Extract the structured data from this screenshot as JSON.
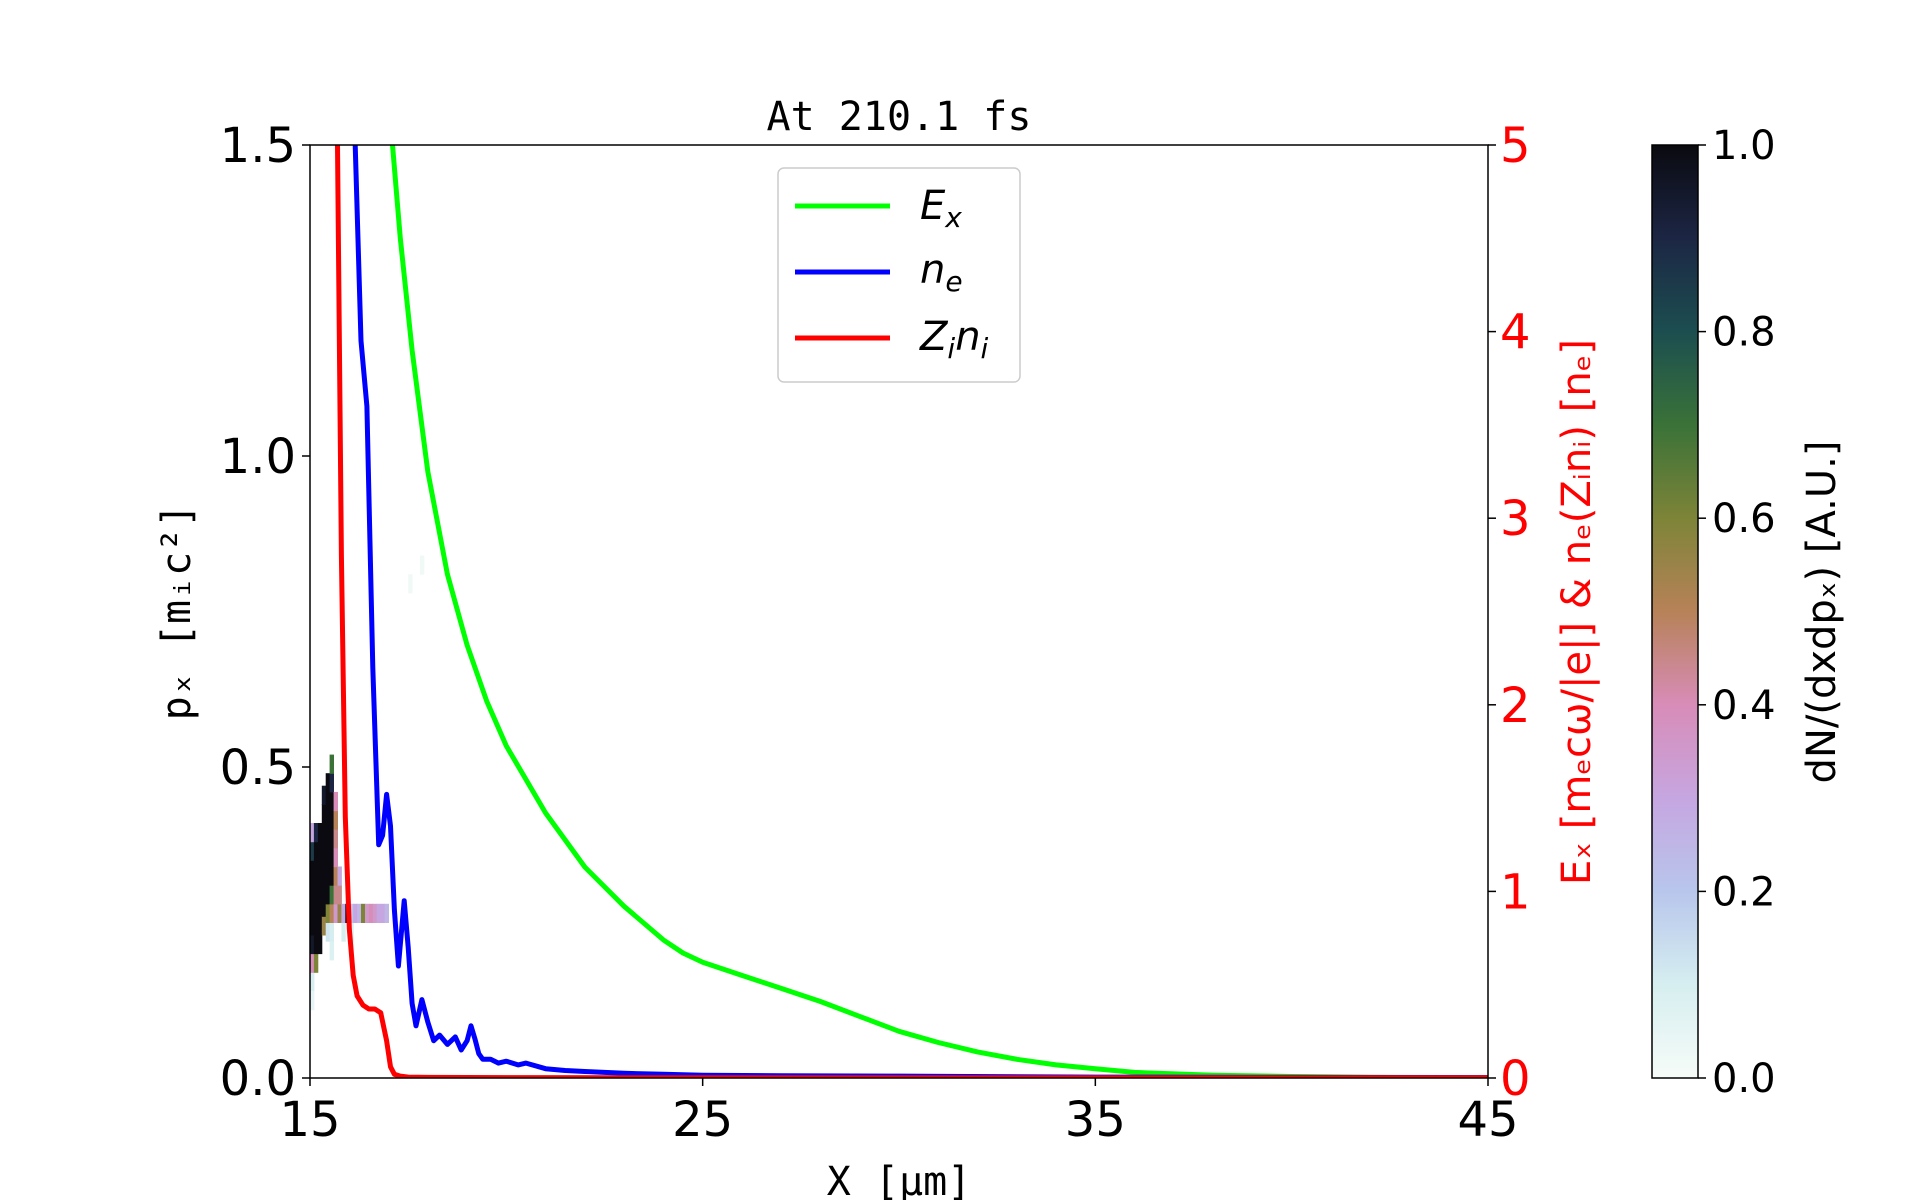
{
  "chart_data": {
    "type": "line",
    "title": "At 210.1 fs",
    "xlabel": "X [μm]",
    "ylabel": "pₓ [mᵢc²]",
    "y2label": "Eₓ [mₑcω/|e|] & nₑ(Zᵢnᵢ) [nₑ]",
    "colorbar_label": "dN/(dxdpₓ) [A.U.]",
    "xlim": [
      15,
      45
    ],
    "ylim": [
      0,
      1.5
    ],
    "y2lim": [
      0,
      5
    ],
    "clim": [
      0,
      1
    ],
    "x_ticks": [
      "15",
      "25",
      "35",
      "45"
    ],
    "y_ticks": [
      "0.0",
      "0.5",
      "1.0",
      "1.5"
    ],
    "y2_ticks": [
      "0",
      "1",
      "2",
      "3",
      "4",
      "5"
    ],
    "colorbar_ticks": [
      "0.0",
      "0.2",
      "0.4",
      "0.6",
      "0.8",
      "1.0"
    ],
    "legend_position": "top-center",
    "grid": false,
    "series": [
      {
        "name": "Ex",
        "color": "#00ff00",
        "axis": "right",
        "x": [
          17.1,
          17.3,
          17.6,
          18.0,
          18.5,
          19.0,
          19.5,
          20.0,
          21.0,
          22.0,
          23.0,
          24.0,
          24.5,
          25.0,
          26.0,
          27.0,
          28.0,
          29.0,
          30.0,
          31.0,
          32.0,
          33.0,
          34.0,
          35.0,
          36.0,
          38.0,
          40.0,
          42.0,
          45.0
        ],
        "y": [
          5.0,
          4.5,
          3.9,
          3.25,
          2.7,
          2.32,
          2.02,
          1.78,
          1.42,
          1.13,
          0.92,
          0.74,
          0.67,
          0.62,
          0.55,
          0.48,
          0.41,
          0.33,
          0.25,
          0.19,
          0.14,
          0.1,
          0.07,
          0.05,
          0.03,
          0.015,
          0.008,
          0.004,
          0.002
        ]
      },
      {
        "name": "ne",
        "color": "#0000ff",
        "axis": "right",
        "x": [
          16.15,
          16.3,
          16.45,
          16.6,
          16.75,
          16.85,
          16.95,
          17.05,
          17.15,
          17.25,
          17.4,
          17.5,
          17.6,
          17.7,
          17.85,
          18.0,
          18.15,
          18.3,
          18.5,
          18.7,
          18.85,
          19.0,
          19.1,
          19.2,
          19.3,
          19.4,
          19.6,
          19.8,
          20.0,
          20.3,
          20.5,
          21.0,
          21.5,
          22.0,
          22.5,
          23.0,
          24.0,
          25.0,
          27.0,
          30.0,
          35.0,
          40.0,
          45.0
        ],
        "y": [
          5.0,
          3.95,
          3.6,
          2.2,
          1.25,
          1.3,
          1.52,
          1.35,
          0.9,
          0.6,
          0.95,
          0.7,
          0.4,
          0.28,
          0.42,
          0.3,
          0.2,
          0.23,
          0.18,
          0.22,
          0.15,
          0.2,
          0.28,
          0.21,
          0.13,
          0.1,
          0.1,
          0.08,
          0.09,
          0.07,
          0.08,
          0.05,
          0.04,
          0.035,
          0.03,
          0.025,
          0.02,
          0.015,
          0.012,
          0.01,
          0.005,
          0.003,
          0.002
        ]
      },
      {
        "name": "Zini",
        "color": "#ff0000",
        "axis": "right",
        "x": [
          15.7,
          15.8,
          15.9,
          16.0,
          16.1,
          16.2,
          16.35,
          16.5,
          16.65,
          16.8,
          16.95,
          17.05,
          17.15,
          17.3,
          17.5,
          18.0,
          20.0,
          25.0,
          30.0,
          35.0,
          40.0,
          45.0
        ],
        "y": [
          5.0,
          2.8,
          1.4,
          0.8,
          0.55,
          0.44,
          0.39,
          0.37,
          0.37,
          0.35,
          0.2,
          0.06,
          0.02,
          0.01,
          0.005,
          0.003,
          0.002,
          0.001,
          0.001,
          0.001,
          0.001,
          0.001
        ]
      }
    ],
    "heatmap_cells": [
      {
        "x": 15.0,
        "y": 0.14,
        "v": 0.1
      },
      {
        "x": 15.0,
        "y": 0.17,
        "v": 0.4
      },
      {
        "x": 15.0,
        "y": 0.2,
        "v": 0.95
      },
      {
        "x": 15.0,
        "y": 0.23,
        "v": 1.0
      },
      {
        "x": 15.0,
        "y": 0.26,
        "v": 1.0
      },
      {
        "x": 15.0,
        "y": 0.29,
        "v": 1.0
      },
      {
        "x": 15.0,
        "y": 0.32,
        "v": 1.0
      },
      {
        "x": 15.0,
        "y": 0.35,
        "v": 0.85
      },
      {
        "x": 15.0,
        "y": 0.38,
        "v": 0.3
      },
      {
        "x": 15.1,
        "y": 0.17,
        "v": 0.6
      },
      {
        "x": 15.1,
        "y": 0.2,
        "v": 1.0
      },
      {
        "x": 15.1,
        "y": 0.23,
        "v": 1.0
      },
      {
        "x": 15.1,
        "y": 0.26,
        "v": 1.0
      },
      {
        "x": 15.1,
        "y": 0.29,
        "v": 1.0
      },
      {
        "x": 15.1,
        "y": 0.32,
        "v": 1.0
      },
      {
        "x": 15.1,
        "y": 0.35,
        "v": 1.0
      },
      {
        "x": 15.1,
        "y": 0.38,
        "v": 0.9
      },
      {
        "x": 15.2,
        "y": 0.2,
        "v": 1.0
      },
      {
        "x": 15.2,
        "y": 0.23,
        "v": 1.0
      },
      {
        "x": 15.2,
        "y": 0.26,
        "v": 1.0
      },
      {
        "x": 15.2,
        "y": 0.29,
        "v": 1.0
      },
      {
        "x": 15.2,
        "y": 0.32,
        "v": 1.0
      },
      {
        "x": 15.2,
        "y": 0.35,
        "v": 1.0
      },
      {
        "x": 15.2,
        "y": 0.38,
        "v": 1.0
      },
      {
        "x": 15.3,
        "y": 0.23,
        "v": 0.55
      },
      {
        "x": 15.3,
        "y": 0.26,
        "v": 1.0
      },
      {
        "x": 15.3,
        "y": 0.29,
        "v": 1.0
      },
      {
        "x": 15.3,
        "y": 0.32,
        "v": 1.0
      },
      {
        "x": 15.3,
        "y": 0.35,
        "v": 1.0
      },
      {
        "x": 15.3,
        "y": 0.38,
        "v": 1.0
      },
      {
        "x": 15.3,
        "y": 0.41,
        "v": 1.0
      },
      {
        "x": 15.3,
        "y": 0.44,
        "v": 0.95
      },
      {
        "x": 15.4,
        "y": 0.22,
        "v": 0.12
      },
      {
        "x": 15.4,
        "y": 0.25,
        "v": 0.6
      },
      {
        "x": 15.4,
        "y": 0.28,
        "v": 1.0
      },
      {
        "x": 15.4,
        "y": 0.31,
        "v": 1.0
      },
      {
        "x": 15.4,
        "y": 0.34,
        "v": 1.0
      },
      {
        "x": 15.4,
        "y": 0.37,
        "v": 1.0
      },
      {
        "x": 15.4,
        "y": 0.4,
        "v": 1.0
      },
      {
        "x": 15.4,
        "y": 0.43,
        "v": 1.0
      },
      {
        "x": 15.4,
        "y": 0.46,
        "v": 1.0
      },
      {
        "x": 15.5,
        "y": 0.22,
        "v": 0.1
      },
      {
        "x": 15.5,
        "y": 0.25,
        "v": 0.5
      },
      {
        "x": 15.5,
        "y": 0.28,
        "v": 0.7
      },
      {
        "x": 15.5,
        "y": 0.31,
        "v": 1.0
      },
      {
        "x": 15.5,
        "y": 0.34,
        "v": 1.0
      },
      {
        "x": 15.5,
        "y": 0.37,
        "v": 1.0
      },
      {
        "x": 15.5,
        "y": 0.4,
        "v": 1.0
      },
      {
        "x": 15.5,
        "y": 0.43,
        "v": 1.0
      },
      {
        "x": 15.5,
        "y": 0.46,
        "v": 0.9
      },
      {
        "x": 15.5,
        "y": 0.49,
        "v": 0.7
      },
      {
        "x": 15.6,
        "y": 0.25,
        "v": 0.35
      },
      {
        "x": 15.6,
        "y": 0.28,
        "v": 0.45
      },
      {
        "x": 15.6,
        "y": 0.31,
        "v": 0.5
      },
      {
        "x": 15.6,
        "y": 0.34,
        "v": 0.4
      },
      {
        "x": 15.6,
        "y": 0.37,
        "v": 0.45
      },
      {
        "x": 15.6,
        "y": 0.4,
        "v": 0.5
      },
      {
        "x": 15.6,
        "y": 0.43,
        "v": 0.4
      },
      {
        "x": 15.7,
        "y": 0.25,
        "v": 0.55
      },
      {
        "x": 15.7,
        "y": 0.28,
        "v": 0.45
      },
      {
        "x": 15.7,
        "y": 0.31,
        "v": 0.3
      },
      {
        "x": 15.8,
        "y": 0.22,
        "v": 0.1
      },
      {
        "x": 15.8,
        "y": 0.25,
        "v": 0.3
      },
      {
        "x": 15.9,
        "y": 0.25,
        "v": 1.0
      },
      {
        "x": 16.0,
        "y": 0.22,
        "v": 0.1
      },
      {
        "x": 16.0,
        "y": 0.25,
        "v": 0.2
      },
      {
        "x": 16.1,
        "y": 0.25,
        "v": 0.3
      },
      {
        "x": 16.2,
        "y": 0.25,
        "v": 0.25
      },
      {
        "x": 16.3,
        "y": 0.25,
        "v": 0.6
      },
      {
        "x": 16.4,
        "y": 0.25,
        "v": 0.35
      },
      {
        "x": 16.5,
        "y": 0.25,
        "v": 0.4
      },
      {
        "x": 16.6,
        "y": 0.25,
        "v": 0.35
      },
      {
        "x": 16.7,
        "y": 0.25,
        "v": 0.3
      },
      {
        "x": 16.8,
        "y": 0.25,
        "v": 0.3
      },
      {
        "x": 16.9,
        "y": 0.25,
        "v": 0.25
      },
      {
        "x": 15.0,
        "y": 0.11,
        "v": 0.05
      },
      {
        "x": 15.5,
        "y": 0.19,
        "v": 0.08
      },
      {
        "x": 16.0,
        "y": 0.19,
        "v": 0.06
      },
      {
        "x": 17.5,
        "y": 0.78,
        "v": 0.02
      },
      {
        "x": 17.8,
        "y": 0.81,
        "v": 0.02
      }
    ]
  }
}
